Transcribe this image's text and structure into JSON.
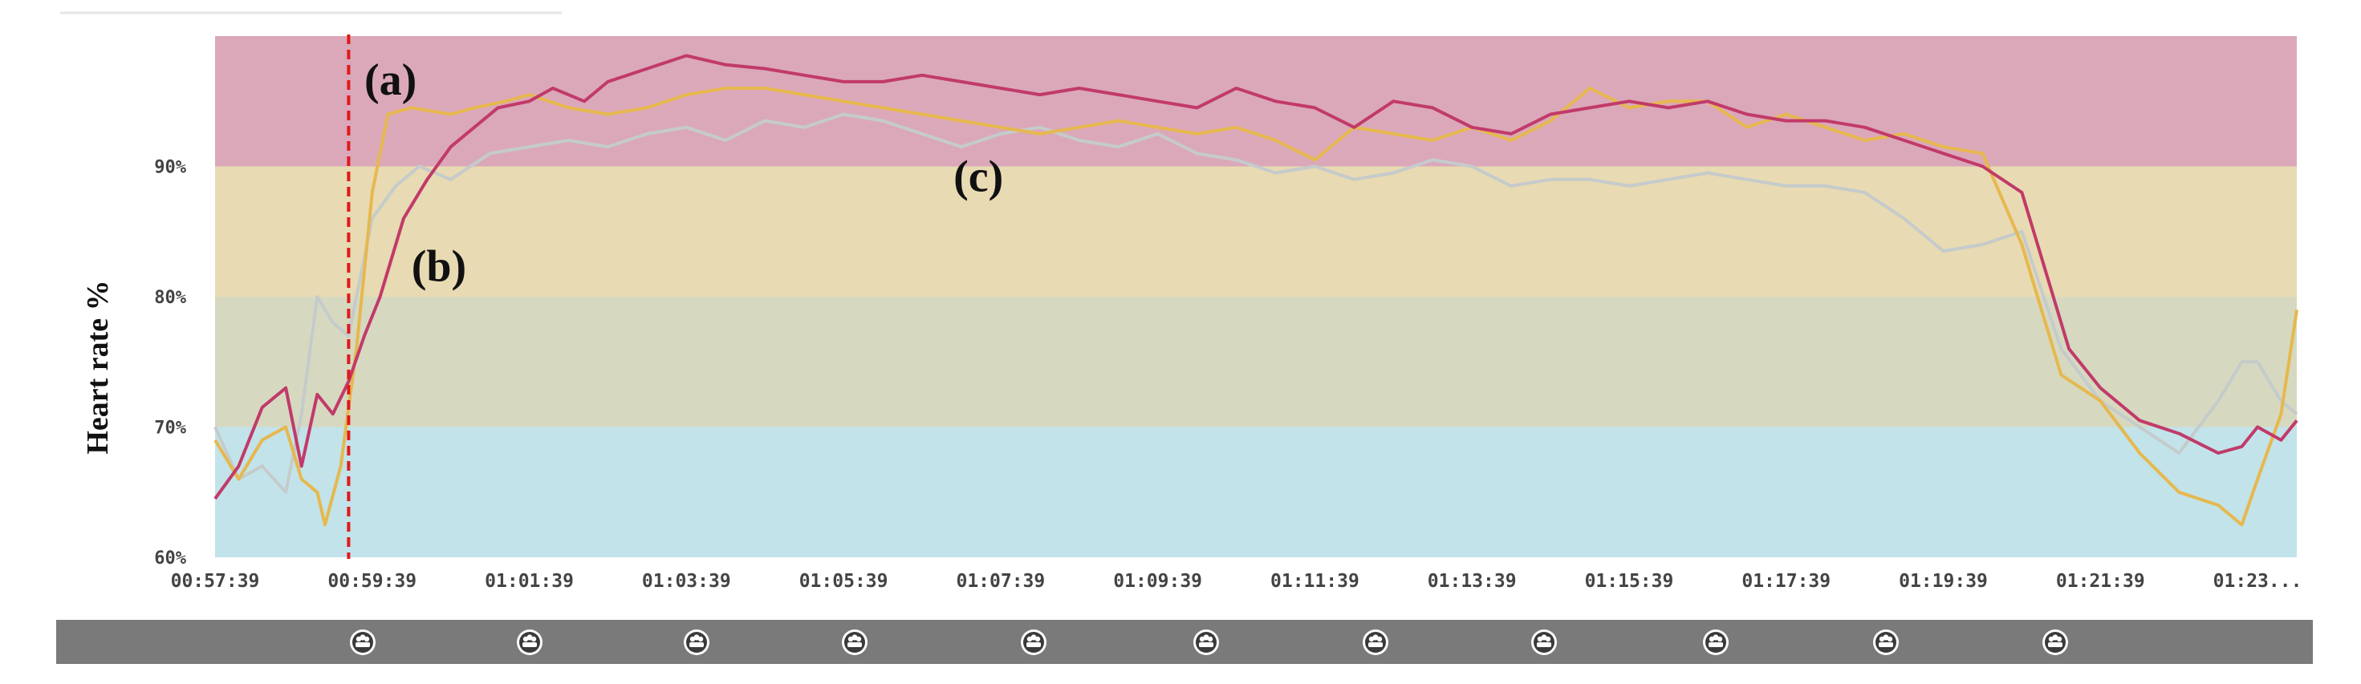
{
  "chart_data": {
    "type": "line",
    "ylabel": "Heart rate %",
    "ylim": [
      60,
      100
    ],
    "y_ticks": [
      "60%",
      "70%",
      "80%",
      "90%"
    ],
    "y_tick_values": [
      60,
      70,
      80,
      90
    ],
    "x_ticks": [
      "00:57:39",
      "00:59:39",
      "01:01:39",
      "01:03:39",
      "01:05:39",
      "01:07:39",
      "01:09:39",
      "01:11:39",
      "01:13:39",
      "01:15:39",
      "01:17:39",
      "01:19:39",
      "01:21:39",
      "01:23..."
    ],
    "x_tick_minutes": [
      0,
      2,
      4,
      6,
      8,
      10,
      12,
      14,
      16,
      18,
      20,
      22,
      24,
      26
    ],
    "xlim_minutes": [
      0,
      26.5
    ],
    "zones": [
      {
        "from": 90,
        "to": 100,
        "color": "#dba8ba"
      },
      {
        "from": 80,
        "to": 90,
        "color": "#e8dab2"
      },
      {
        "from": 70,
        "to": 80,
        "color": "#d6d9c0"
      },
      {
        "from": 60,
        "to": 70,
        "color": "#c2e3e9"
      }
    ],
    "marker": {
      "x_minute": 1.7,
      "color": "#e0191b"
    },
    "annotations": [
      {
        "text": "(a)",
        "x_minute": 1.9,
        "y": 95.5
      },
      {
        "text": "(b)",
        "x_minute": 2.5,
        "y": 81.2
      },
      {
        "text": "(c)",
        "x_minute": 9.4,
        "y": 88.1
      }
    ],
    "series": [
      {
        "color": "#c13a6a",
        "points": [
          [
            0,
            64.5
          ],
          [
            0.3,
            67
          ],
          [
            0.6,
            71.5
          ],
          [
            0.9,
            73
          ],
          [
            1.1,
            67
          ],
          [
            1.3,
            72.5
          ],
          [
            1.5,
            71
          ],
          [
            1.7,
            73.5
          ],
          [
            1.9,
            77
          ],
          [
            2.1,
            80
          ],
          [
            2.4,
            86
          ],
          [
            2.7,
            89
          ],
          [
            3,
            91.5
          ],
          [
            3.3,
            93
          ],
          [
            3.6,
            94.5
          ],
          [
            4,
            95
          ],
          [
            4.3,
            96
          ],
          [
            4.7,
            95
          ],
          [
            5,
            96.5
          ],
          [
            5.5,
            97.5
          ],
          [
            6,
            98.5
          ],
          [
            6.5,
            97.8
          ],
          [
            7,
            97.5
          ],
          [
            7.5,
            97
          ],
          [
            8,
            96.5
          ],
          [
            8.5,
            96.5
          ],
          [
            9,
            97
          ],
          [
            9.5,
            96.5
          ],
          [
            10,
            96
          ],
          [
            10.5,
            95.5
          ],
          [
            11,
            96
          ],
          [
            11.5,
            95.5
          ],
          [
            12,
            95
          ],
          [
            12.5,
            94.5
          ],
          [
            13,
            96
          ],
          [
            13.5,
            95
          ],
          [
            14,
            94.5
          ],
          [
            14.5,
            93
          ],
          [
            15,
            95
          ],
          [
            15.5,
            94.5
          ],
          [
            16,
            93
          ],
          [
            16.5,
            92.5
          ],
          [
            17,
            94
          ],
          [
            17.5,
            94.5
          ],
          [
            18,
            95
          ],
          [
            18.5,
            94.5
          ],
          [
            19,
            95
          ],
          [
            19.5,
            94
          ],
          [
            20,
            93.5
          ],
          [
            20.5,
            93.5
          ],
          [
            21,
            93
          ],
          [
            21.5,
            92
          ],
          [
            22,
            91
          ],
          [
            22.5,
            90
          ],
          [
            23,
            88
          ],
          [
            23.3,
            82
          ],
          [
            23.6,
            76
          ],
          [
            24,
            73
          ],
          [
            24.5,
            70.5
          ],
          [
            25,
            69.5
          ],
          [
            25.5,
            68
          ],
          [
            25.8,
            68.5
          ],
          [
            26,
            70
          ],
          [
            26.3,
            69
          ],
          [
            26.5,
            70.5
          ]
        ]
      },
      {
        "color": "#e6b84e",
        "points": [
          [
            0,
            69
          ],
          [
            0.3,
            66
          ],
          [
            0.6,
            69
          ],
          [
            0.9,
            70
          ],
          [
            1.1,
            66
          ],
          [
            1.3,
            65
          ],
          [
            1.4,
            62.5
          ],
          [
            1.6,
            67
          ],
          [
            1.8,
            76
          ],
          [
            2,
            88
          ],
          [
            2.2,
            94
          ],
          [
            2.5,
            94.5
          ],
          [
            3,
            94
          ],
          [
            3.3,
            94.5
          ],
          [
            3.7,
            95
          ],
          [
            4,
            95.5
          ],
          [
            4.5,
            94.5
          ],
          [
            5,
            94
          ],
          [
            5.5,
            94.5
          ],
          [
            6,
            95.5
          ],
          [
            6.5,
            96
          ],
          [
            7,
            96
          ],
          [
            7.5,
            95.5
          ],
          [
            8,
            95
          ],
          [
            8.5,
            94.5
          ],
          [
            9,
            94
          ],
          [
            9.5,
            93.5
          ],
          [
            10,
            93
          ],
          [
            10.5,
            92.5
          ],
          [
            11,
            93
          ],
          [
            11.5,
            93.5
          ],
          [
            12,
            93
          ],
          [
            12.5,
            92.5
          ],
          [
            13,
            93
          ],
          [
            13.5,
            92
          ],
          [
            14,
            90.5
          ],
          [
            14.5,
            93
          ],
          [
            15,
            92.5
          ],
          [
            15.5,
            92
          ],
          [
            16,
            93
          ],
          [
            16.5,
            92
          ],
          [
            17,
            93.5
          ],
          [
            17.5,
            96
          ],
          [
            18,
            94.5
          ],
          [
            18.5,
            95
          ],
          [
            19,
            95
          ],
          [
            19.5,
            93
          ],
          [
            20,
            94
          ],
          [
            20.5,
            93
          ],
          [
            21,
            92
          ],
          [
            21.5,
            92.5
          ],
          [
            22,
            91.5
          ],
          [
            22.5,
            91
          ],
          [
            23,
            84
          ],
          [
            23.5,
            74
          ],
          [
            24,
            72
          ],
          [
            24.5,
            68
          ],
          [
            25,
            65
          ],
          [
            25.5,
            64
          ],
          [
            25.8,
            62.5
          ],
          [
            26,
            66
          ],
          [
            26.3,
            71
          ],
          [
            26.5,
            79
          ]
        ]
      },
      {
        "color": "#c5cbcb",
        "points": [
          [
            0,
            70
          ],
          [
            0.3,
            66
          ],
          [
            0.6,
            67
          ],
          [
            0.9,
            65
          ],
          [
            1.1,
            71
          ],
          [
            1.3,
            80
          ],
          [
            1.5,
            78
          ],
          [
            1.7,
            77
          ],
          [
            2,
            86
          ],
          [
            2.3,
            88.5
          ],
          [
            2.6,
            90
          ],
          [
            3,
            89
          ],
          [
            3.5,
            91
          ],
          [
            4,
            91.5
          ],
          [
            4.5,
            92
          ],
          [
            5,
            91.5
          ],
          [
            5.5,
            92.5
          ],
          [
            6,
            93
          ],
          [
            6.5,
            92
          ],
          [
            7,
            93.5
          ],
          [
            7.5,
            93
          ],
          [
            8,
            94
          ],
          [
            8.5,
            93.5
          ],
          [
            9,
            92.5
          ],
          [
            9.5,
            91.5
          ],
          [
            10,
            92.5
          ],
          [
            10.5,
            93
          ],
          [
            11,
            92
          ],
          [
            11.5,
            91.5
          ],
          [
            12,
            92.5
          ],
          [
            12.5,
            91
          ],
          [
            13,
            90.5
          ],
          [
            13.5,
            89.5
          ],
          [
            14,
            90
          ],
          [
            14.5,
            89
          ],
          [
            15,
            89.5
          ],
          [
            15.5,
            90.5
          ],
          [
            16,
            90
          ],
          [
            16.5,
            88.5
          ],
          [
            17,
            89
          ],
          [
            17.5,
            89
          ],
          [
            18,
            88.5
          ],
          [
            18.5,
            89
          ],
          [
            19,
            89.5
          ],
          [
            19.5,
            89
          ],
          [
            20,
            88.5
          ],
          [
            20.5,
            88.5
          ],
          [
            21,
            88
          ],
          [
            21.5,
            86
          ],
          [
            22,
            83.5
          ],
          [
            22.5,
            84
          ],
          [
            23,
            85
          ],
          [
            23.5,
            76
          ],
          [
            24,
            72
          ],
          [
            24.5,
            70
          ],
          [
            25,
            68
          ],
          [
            25.5,
            72
          ],
          [
            25.8,
            75
          ],
          [
            26,
            75
          ],
          [
            26.3,
            72
          ],
          [
            26.5,
            71
          ]
        ]
      }
    ]
  }
}
